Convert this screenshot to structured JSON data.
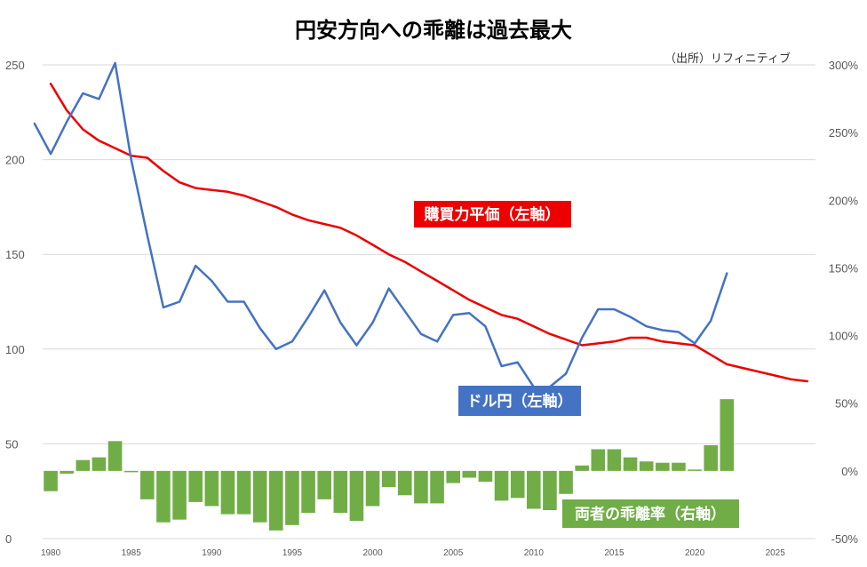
{
  "chart_data": {
    "type": "bar+line",
    "title": "円安方向への乖離は過去最大",
    "source": "（出所）リフィニティブ",
    "y_left": {
      "min": 0,
      "max": 250,
      "ticks": [
        0,
        50,
        100,
        150,
        200,
        250
      ]
    },
    "y_right": {
      "min": -0.5,
      "max": 3.0,
      "ticks": [
        "-50%",
        "0%",
        "50%",
        "100%",
        "150%",
        "200%",
        "250%",
        "300%"
      ]
    },
    "x_ticks": [
      1980,
      1985,
      1990,
      1995,
      2000,
      2005,
      2010,
      2015,
      2020,
      2025
    ],
    "grid": true,
    "series": [
      {
        "name": "購買力平価（左軸）",
        "type": "line",
        "axis": "left",
        "color": "#ee0000",
        "x": [
          1980,
          1981,
          1982,
          1983,
          1984,
          1985,
          1986,
          1987,
          1988,
          1989,
          1990,
          1991,
          1992,
          1993,
          1994,
          1995,
          1996,
          1997,
          1998,
          1999,
          2000,
          2001,
          2002,
          2003,
          2004,
          2005,
          2006,
          2007,
          2008,
          2009,
          2010,
          2011,
          2012,
          2013,
          2014,
          2015,
          2016,
          2017,
          2018,
          2019,
          2020,
          2021,
          2022,
          2023,
          2024,
          2025,
          2026,
          2027
        ],
        "y": [
          240,
          226,
          216,
          210,
          206,
          202,
          201,
          194,
          188,
          185,
          184,
          183,
          181,
          178,
          175,
          171,
          168,
          166,
          164,
          160,
          155,
          150,
          146,
          141,
          136,
          131,
          126,
          122,
          118,
          116,
          112,
          108,
          105,
          102,
          103,
          104,
          106,
          106,
          104,
          103,
          102,
          97,
          92,
          90,
          88,
          86,
          84,
          83
        ]
      },
      {
        "name": "ドル円（左軸）",
        "type": "line",
        "axis": "left",
        "color": "#4472c4",
        "x": [
          1979,
          1980,
          1981,
          1982,
          1983,
          1984,
          1985,
          1986,
          1987,
          1988,
          1989,
          1990,
          1991,
          1992,
          1993,
          1994,
          1995,
          1996,
          1997,
          1998,
          1999,
          2000,
          2001,
          2002,
          2003,
          2004,
          2005,
          2006,
          2007,
          2008,
          2009,
          2010,
          2011,
          2012,
          2013,
          2014,
          2015,
          2016,
          2017,
          2018,
          2019,
          2020,
          2021,
          2022
        ],
        "y": [
          219,
          203,
          220,
          235,
          232,
          251,
          200,
          160,
          122,
          125,
          144,
          136,
          125,
          125,
          111,
          100,
          104,
          117,
          131,
          114,
          102,
          114,
          132,
          120,
          108,
          104,
          118,
          119,
          112,
          91,
          93,
          80,
          80,
          87,
          106,
          121,
          121,
          117,
          112,
          110,
          109,
          103,
          115,
          140
        ]
      },
      {
        "name": "両者の乖離率（右軸）",
        "type": "bar",
        "axis": "right",
        "color": "#70ad47",
        "x": [
          1980,
          1981,
          1982,
          1983,
          1984,
          1985,
          1986,
          1987,
          1988,
          1989,
          1990,
          1991,
          1992,
          1993,
          1994,
          1995,
          1996,
          1997,
          1998,
          1999,
          2000,
          2001,
          2002,
          2003,
          2004,
          2005,
          2006,
          2007,
          2008,
          2009,
          2010,
          2011,
          2012,
          2013,
          2014,
          2015,
          2016,
          2017,
          2018,
          2019,
          2020,
          2021,
          2022
        ],
        "values": [
          -0.15,
          -0.02,
          0.08,
          0.1,
          0.22,
          -0.01,
          -0.21,
          -0.38,
          -0.36,
          -0.23,
          -0.26,
          -0.32,
          -0.32,
          -0.38,
          -0.44,
          -0.4,
          -0.31,
          -0.21,
          -0.31,
          -0.37,
          -0.26,
          -0.12,
          -0.18,
          -0.24,
          -0.24,
          -0.09,
          -0.05,
          -0.08,
          -0.22,
          -0.2,
          -0.28,
          -0.29,
          -0.17,
          0.04,
          0.16,
          0.16,
          0.1,
          0.07,
          0.06,
          0.06,
          0.01,
          0.19,
          0.53
        ]
      }
    ],
    "annotations": {
      "ppp_label": "購買力平価（左軸）",
      "usdjpy_label": "ドル円（左軸）",
      "deviation_label": "両者の乖離率（右軸）"
    }
  }
}
